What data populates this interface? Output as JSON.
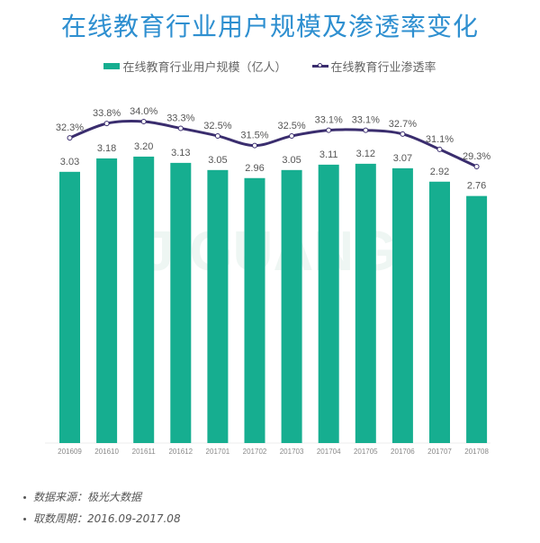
{
  "title": "在线教育行业用户规模及渗透率变化",
  "legend": {
    "bar_label": "在线教育行业用户规模（亿人）",
    "line_label": "在线教育行业渗透率"
  },
  "colors": {
    "bar": "#16ae90",
    "line": "#3a2d6e",
    "title": "#2e8fd0"
  },
  "watermark": "JIGUANG 极光大数据",
  "notes": [
    "数据来源：极光大数据",
    "取数周期：2016.09-2017.08"
  ],
  "chart_data": {
    "type": "bar",
    "title": "在线教育行业用户规模及渗透率变化",
    "categories": [
      "201609",
      "201610",
      "201611",
      "201612",
      "201701",
      "201702",
      "201703",
      "201704",
      "201705",
      "201706",
      "201707",
      "201708"
    ],
    "series": [
      {
        "name": "在线教育行业用户规模（亿人）",
        "type": "bar",
        "values": [
          3.03,
          3.18,
          3.2,
          3.13,
          3.05,
          2.96,
          3.05,
          3.11,
          3.12,
          3.07,
          2.92,
          2.76
        ]
      },
      {
        "name": "在线教育行业渗透率",
        "type": "line",
        "values": [
          32.3,
          33.8,
          34.0,
          33.3,
          32.5,
          31.5,
          32.5,
          33.1,
          33.1,
          32.7,
          31.1,
          29.3
        ],
        "labels": [
          "32.3%",
          "33.8%",
          "34.0%",
          "33.3%",
          "32.5%",
          "31.5%",
          "32.5%",
          "33.1%",
          "33.1%",
          "32.7%",
          "31.1%",
          "29.3%"
        ]
      }
    ],
    "xlabel": "",
    "ylabel": "",
    "legend_position": "top",
    "grid": false
  }
}
